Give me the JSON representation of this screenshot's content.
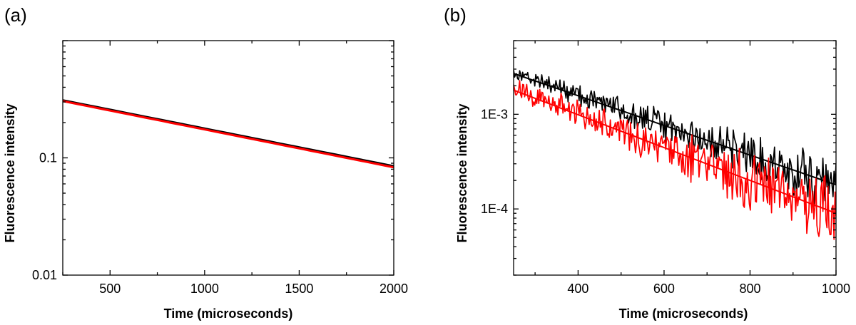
{
  "chart_data": [
    {
      "panel_label": "(a)",
      "type": "line",
      "title": "",
      "xlabel": "Time (microseconds)",
      "ylabel": "Fluorescence intensity",
      "xscale": "linear",
      "yscale": "log",
      "xlim": [
        250,
        2000
      ],
      "ylim": [
        0.01,
        1.0
      ],
      "x_ticks": [
        500,
        1000,
        1500,
        2000
      ],
      "x_tick_labels": [
        "500",
        "1000",
        "1500",
        "2000"
      ],
      "y_ticks": [
        0.01,
        0.1
      ],
      "y_tick_labels": [
        "0.01",
        "0.1"
      ],
      "grid": false,
      "legend": null,
      "series": [
        {
          "name": "data",
          "color": "#000000",
          "kind": "smooth",
          "x": [
            250,
            2000
          ],
          "y": [
            0.31,
            0.085
          ]
        },
        {
          "name": "fit",
          "color": "#ff0000",
          "kind": "smooth",
          "x": [
            250,
            2000
          ],
          "y": [
            0.305,
            0.083
          ]
        }
      ]
    },
    {
      "panel_label": "(b)",
      "type": "line",
      "title": "",
      "xlabel": "Time (microseconds)",
      "ylabel": "Fluorescence intensity",
      "xscale": "linear",
      "yscale": "log",
      "xlim": [
        250,
        1000
      ],
      "ylim": [
        2e-05,
        0.006
      ],
      "x_ticks": [
        400,
        600,
        800,
        1000
      ],
      "x_tick_labels": [
        "400",
        "600",
        "800",
        "1000"
      ],
      "y_ticks": [
        0.001,
        0.0001
      ],
      "y_tick_labels": [
        "1E-3",
        "1E-4"
      ],
      "grid": false,
      "legend": null,
      "series": [
        {
          "name": "black data",
          "color": "#000000",
          "kind": "noisy",
          "x": [
            250,
            1000
          ],
          "y": [
            0.0028,
            0.00018
          ],
          "noise": 0.12
        },
        {
          "name": "black fit",
          "color": "#000000",
          "kind": "smooth",
          "x": [
            250,
            1000
          ],
          "y": [
            0.0027,
            0.00018
          ]
        },
        {
          "name": "red data",
          "color": "#ff0000",
          "kind": "noisy",
          "x": [
            250,
            1000
          ],
          "y": [
            0.0019,
            8.5e-05
          ],
          "noise": 0.16
        },
        {
          "name": "red fit",
          "color": "#ff0000",
          "kind": "smooth",
          "x": [
            250,
            1000
          ],
          "y": [
            0.0018,
            9e-05
          ]
        }
      ]
    }
  ]
}
